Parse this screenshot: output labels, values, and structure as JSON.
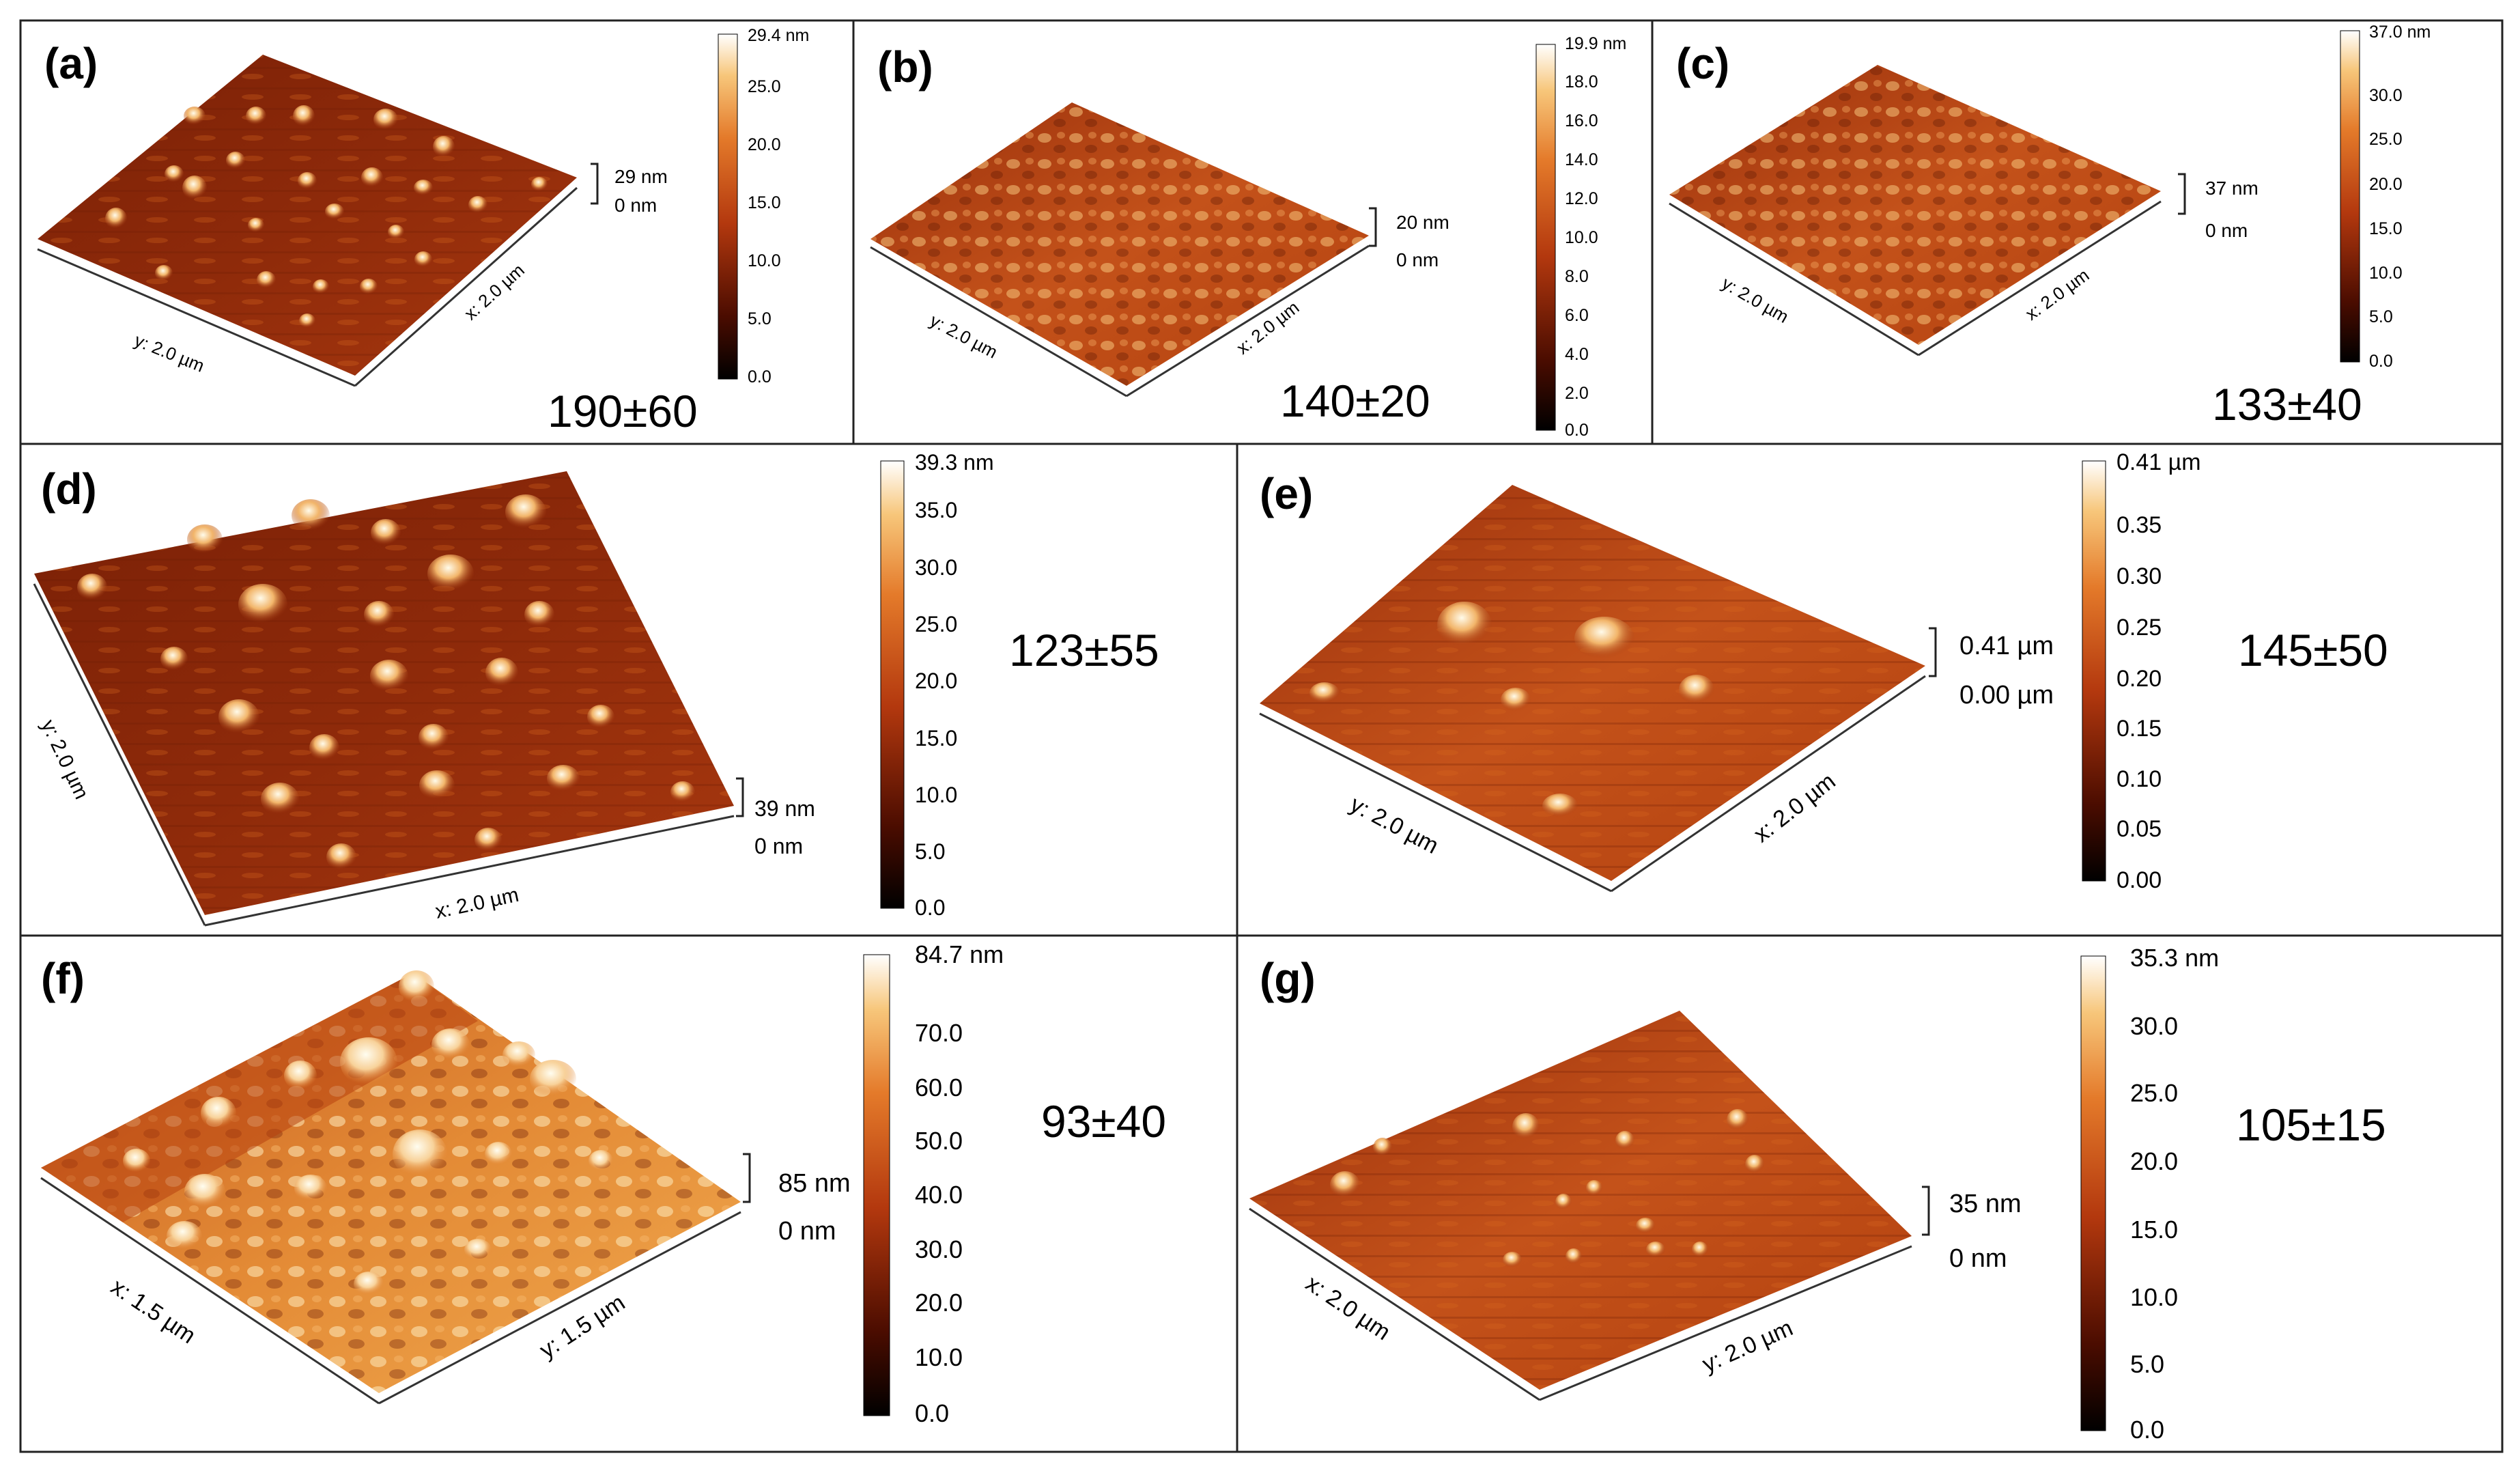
{
  "figure": {
    "panels": [
      {
        "label": "(a)",
        "value": "190±60",
        "height_top": "29 nm",
        "height_bottom": "0 nm",
        "x_axis": "x: 2.0 µm",
        "y_axis": "y: 2.0 µm",
        "colorbar": {
          "max": "29.4 nm",
          "ticks": [
            "25.0",
            "20.0",
            "15.0",
            "10.0",
            "5.0",
            "0.0"
          ]
        }
      },
      {
        "label": "(b)",
        "value": "140±20",
        "height_top": "20 nm",
        "height_bottom": "0 nm",
        "x_axis": "x: 2.0 µm",
        "y_axis": "y: 2.0 µm",
        "colorbar": {
          "max": "19.9 nm",
          "ticks": [
            "18.0",
            "16.0",
            "14.0",
            "12.0",
            "10.0",
            "8.0",
            "6.0",
            "4.0",
            "2.0",
            "0.0"
          ]
        }
      },
      {
        "label": "(c)",
        "value": "133±40",
        "height_top": "37 nm",
        "height_bottom": "0 nm",
        "x_axis": "x: 2.0 µm",
        "y_axis": "y: 2.0 µm",
        "colorbar": {
          "max": "37.0 nm",
          "ticks": [
            "30.0",
            "25.0",
            "20.0",
            "15.0",
            "10.0",
            "5.0",
            "0.0"
          ]
        }
      },
      {
        "label": "(d)",
        "value": "123±55",
        "height_top": "39 nm",
        "height_bottom": "0 nm",
        "x_axis": "x: 2.0 µm",
        "y_axis": "y: 2.0 µm",
        "colorbar": {
          "max": "39.3 nm",
          "ticks": [
            "35.0",
            "30.0",
            "25.0",
            "20.0",
            "15.0",
            "10.0",
            "5.0",
            "0.0"
          ]
        }
      },
      {
        "label": "(e)",
        "value": "145±50",
        "height_top": "0.41 µm",
        "height_bottom": "0.00 µm",
        "x_axis": "x: 2.0 µm",
        "y_axis": "y: 2.0 µm",
        "colorbar": {
          "max": "0.41 µm",
          "ticks": [
            "0.35",
            "0.30",
            "0.25",
            "0.20",
            "0.15",
            "0.10",
            "0.05",
            "0.00"
          ]
        }
      },
      {
        "label": "(f)",
        "value": "93±40",
        "height_top": "85 nm",
        "height_bottom": "0 nm",
        "x_axis": "y: 1.5 µm",
        "y_axis": "x: 1.5 µm",
        "colorbar": {
          "max": "84.7 nm",
          "ticks": [
            "70.0",
            "60.0",
            "50.0",
            "40.0",
            "30.0",
            "20.0",
            "10.0",
            "0.0"
          ]
        }
      },
      {
        "label": "(g)",
        "value": "105±15",
        "height_top": "35 nm",
        "height_bottom": "0 nm",
        "x_axis": "y: 2.0 µm",
        "y_axis": "x: 2.0 µm",
        "colorbar": {
          "max": "35.3 nm",
          "ticks": [
            "30.0",
            "25.0",
            "20.0",
            "15.0",
            "10.0",
            "5.0",
            "0.0"
          ]
        }
      }
    ],
    "colors": {
      "dark": "#1a0500",
      "mid": "#a9320d",
      "warm": "#e0701f",
      "light": "#fff6dc",
      "frame": "#222222"
    }
  }
}
